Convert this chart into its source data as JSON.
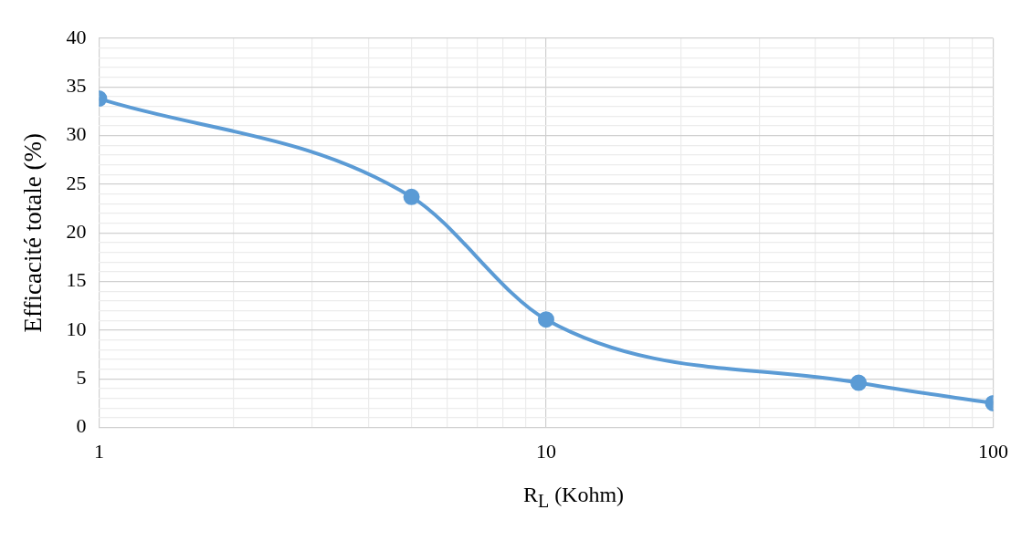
{
  "chart_data": {
    "type": "line",
    "xlabel": "R$_{L}$ (Kohm)",
    "ylabel": "Efficacité totale (%)",
    "x": [
      1,
      5,
      10,
      50,
      100
    ],
    "series": [
      {
        "color": "#5b9bd5",
        "values": [
          33.8,
          23.7,
          11.1,
          4.6,
          2.5
        ]
      }
    ],
    "log": "x",
    "xlim": [
      1,
      100
    ],
    "ylim": [
      0,
      40
    ],
    "xticks": [
      1,
      {
        "value": 2,
        "label": null
      },
      {
        "value": 3,
        "label": null
      },
      {
        "value": 4,
        "label": null
      },
      {
        "value": 5,
        "label": null
      },
      {
        "value": 6,
        "label": null
      },
      {
        "value": 7,
        "label": null
      },
      {
        "value": 8,
        "label": null
      },
      {
        "value": 9,
        "label": null
      },
      10,
      {
        "value": 20,
        "label": null
      },
      {
        "value": 30,
        "label": null
      },
      {
        "value": 40,
        "label": null
      },
      {
        "value": 50,
        "label": null
      },
      {
        "value": 60,
        "label": null
      },
      {
        "value": 70,
        "label": null
      },
      {
        "value": 80,
        "label": null
      },
      {
        "value": 90,
        "label": null
      },
      100
    ],
    "yticks": [
      0,
      {
        "value": 1,
        "label": null
      },
      {
        "value": 2,
        "label": null
      },
      {
        "value": 3,
        "label": null
      },
      {
        "value": 4,
        "label": null
      },
      5,
      {
        "value": 6,
        "label": null
      },
      {
        "value": 7,
        "label": null
      },
      {
        "value": 8,
        "label": null
      },
      {
        "value": 9,
        "label": null
      },
      10,
      {
        "value": 11,
        "label": null
      },
      {
        "value": 12,
        "label": null
      },
      {
        "value": 13,
        "label": null
      },
      {
        "value": 14,
        "label": null
      },
      15,
      {
        "value": 16,
        "label": null
      },
      {
        "value": 17,
        "label": null
      },
      {
        "value": 18,
        "label": null
      },
      {
        "value": 19,
        "label": null
      },
      20,
      {
        "value": 21,
        "label": null
      },
      {
        "value": 22,
        "label": null
      },
      {
        "value": 23,
        "label": null
      },
      {
        "value": 24,
        "label": null
      },
      25,
      {
        "value": 26,
        "label": null
      },
      {
        "value": 27,
        "label": null
      },
      {
        "value": 28,
        "label": null
      },
      {
        "value": 29,
        "label": null
      },
      30,
      {
        "value": 31,
        "label": null
      },
      {
        "value": 32,
        "label": null
      },
      {
        "value": 33,
        "label": null
      },
      {
        "value": 34,
        "label": null
      },
      35,
      {
        "value": 36,
        "label": null
      },
      {
        "value": 37,
        "label": null
      },
      {
        "value": 38,
        "label": null
      },
      {
        "value": 39,
        "label": null
      },
      40
    ],
    "grid": true,
    "marker": "circle",
    "line_style": "solid",
    "legend": false
  }
}
